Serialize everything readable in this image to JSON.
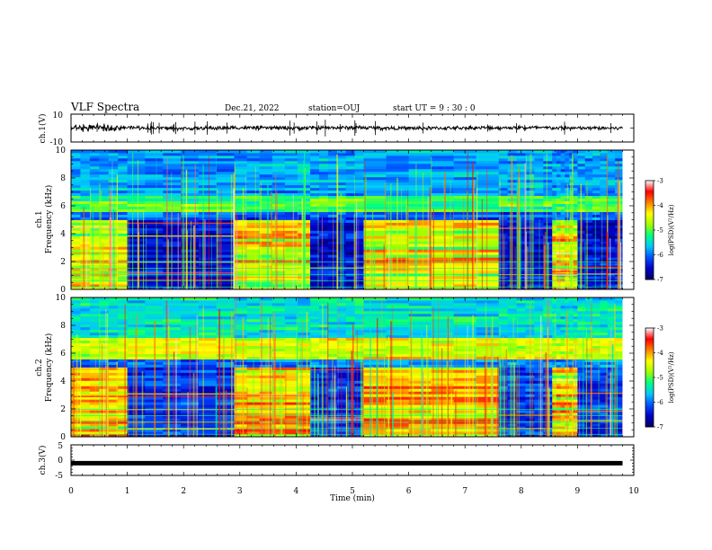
{
  "header": {
    "title": "VLF Spectra",
    "date": "Dec.21, 2022",
    "station": "station=OUJ",
    "start": "start  UT =   9 : 30 : 0"
  },
  "chart_data": [
    {
      "type": "line",
      "id": "ch1-waveform",
      "ylabel": "ch.1(V)",
      "ylim": [
        -10,
        10
      ],
      "y_ticks": [
        "10",
        "-10"
      ],
      "x": [
        0,
        1,
        2,
        3,
        4,
        5,
        6,
        7,
        8,
        9,
        9.8
      ],
      "series": [
        {
          "values": [
            0,
            0.4,
            -0.3,
            0.2,
            0,
            0.3,
            -0.2,
            0.1,
            0.3,
            -0.1,
            0
          ]
        }
      ]
    },
    {
      "type": "heatmap",
      "id": "ch1-spectrogram",
      "ylabel_top": "ch.1",
      "ylabel": "Frequency (kHz)",
      "ylim": [
        0,
        10
      ],
      "y_ticks": [
        "0",
        "2",
        "4",
        "6",
        "8",
        "10"
      ],
      "xlim": [
        0,
        10
      ],
      "data_end_min": 9.8,
      "background_level": -6.4,
      "segments_min": [
        [
          0,
          1.0
        ],
        [
          1.0,
          2.9
        ],
        [
          2.9,
          4.25
        ],
        [
          4.25,
          5.2
        ],
        [
          5.2,
          7.6
        ],
        [
          7.6,
          8.55
        ],
        [
          8.55,
          9.0
        ],
        [
          9.0,
          9.8
        ]
      ],
      "colorbar": {
        "label": "log(PSD)(V²/Hz)",
        "range": [
          -7,
          -3
        ],
        "ticks": [
          "-3",
          "-4",
          "-5",
          "-6",
          "-7"
        ]
      }
    },
    {
      "type": "heatmap",
      "id": "ch2-spectrogram",
      "ylabel_top": "ch.2",
      "ylabel": "Frequency (kHz)",
      "ylim": [
        0,
        10
      ],
      "y_ticks": [
        "0",
        "2",
        "4",
        "6",
        "8",
        "10"
      ],
      "xlim": [
        0,
        10
      ],
      "data_end_min": 9.8,
      "background_level": -6.2,
      "segments_min": [
        [
          0,
          1.0
        ],
        [
          1.0,
          2.9
        ],
        [
          2.9,
          4.25
        ],
        [
          4.25,
          5.2
        ],
        [
          5.2,
          7.6
        ],
        [
          7.6,
          8.55
        ],
        [
          8.55,
          9.0
        ],
        [
          9.0,
          9.8
        ]
      ],
      "colorbar": {
        "label": "log(PSD)(V²/Hz)",
        "range": [
          -7,
          -3
        ],
        "ticks": [
          "-3",
          "-4",
          "-5",
          "-6",
          "-7"
        ]
      }
    },
    {
      "type": "line",
      "id": "ch3-waveform",
      "ylabel": "ch.3(V)",
      "ylim": [
        -5,
        5
      ],
      "y_ticks": [
        "5",
        "0",
        "-5"
      ],
      "x": [
        0,
        9.8
      ],
      "series": [
        {
          "values": [
            -1,
            -1
          ]
        }
      ]
    }
  ],
  "x_axis": {
    "label": "Time (min)",
    "ticks": [
      "0",
      "1",
      "2",
      "3",
      "4",
      "5",
      "6",
      "7",
      "8",
      "9",
      "10"
    ]
  },
  "colors": {
    "colormap": [
      "#000060",
      "#0000c8",
      "#0050ff",
      "#00c8ff",
      "#00ff80",
      "#a0ff00",
      "#ffff00",
      "#ff8000",
      "#ff0000",
      "#ffffff"
    ],
    "line": "#000000"
  }
}
